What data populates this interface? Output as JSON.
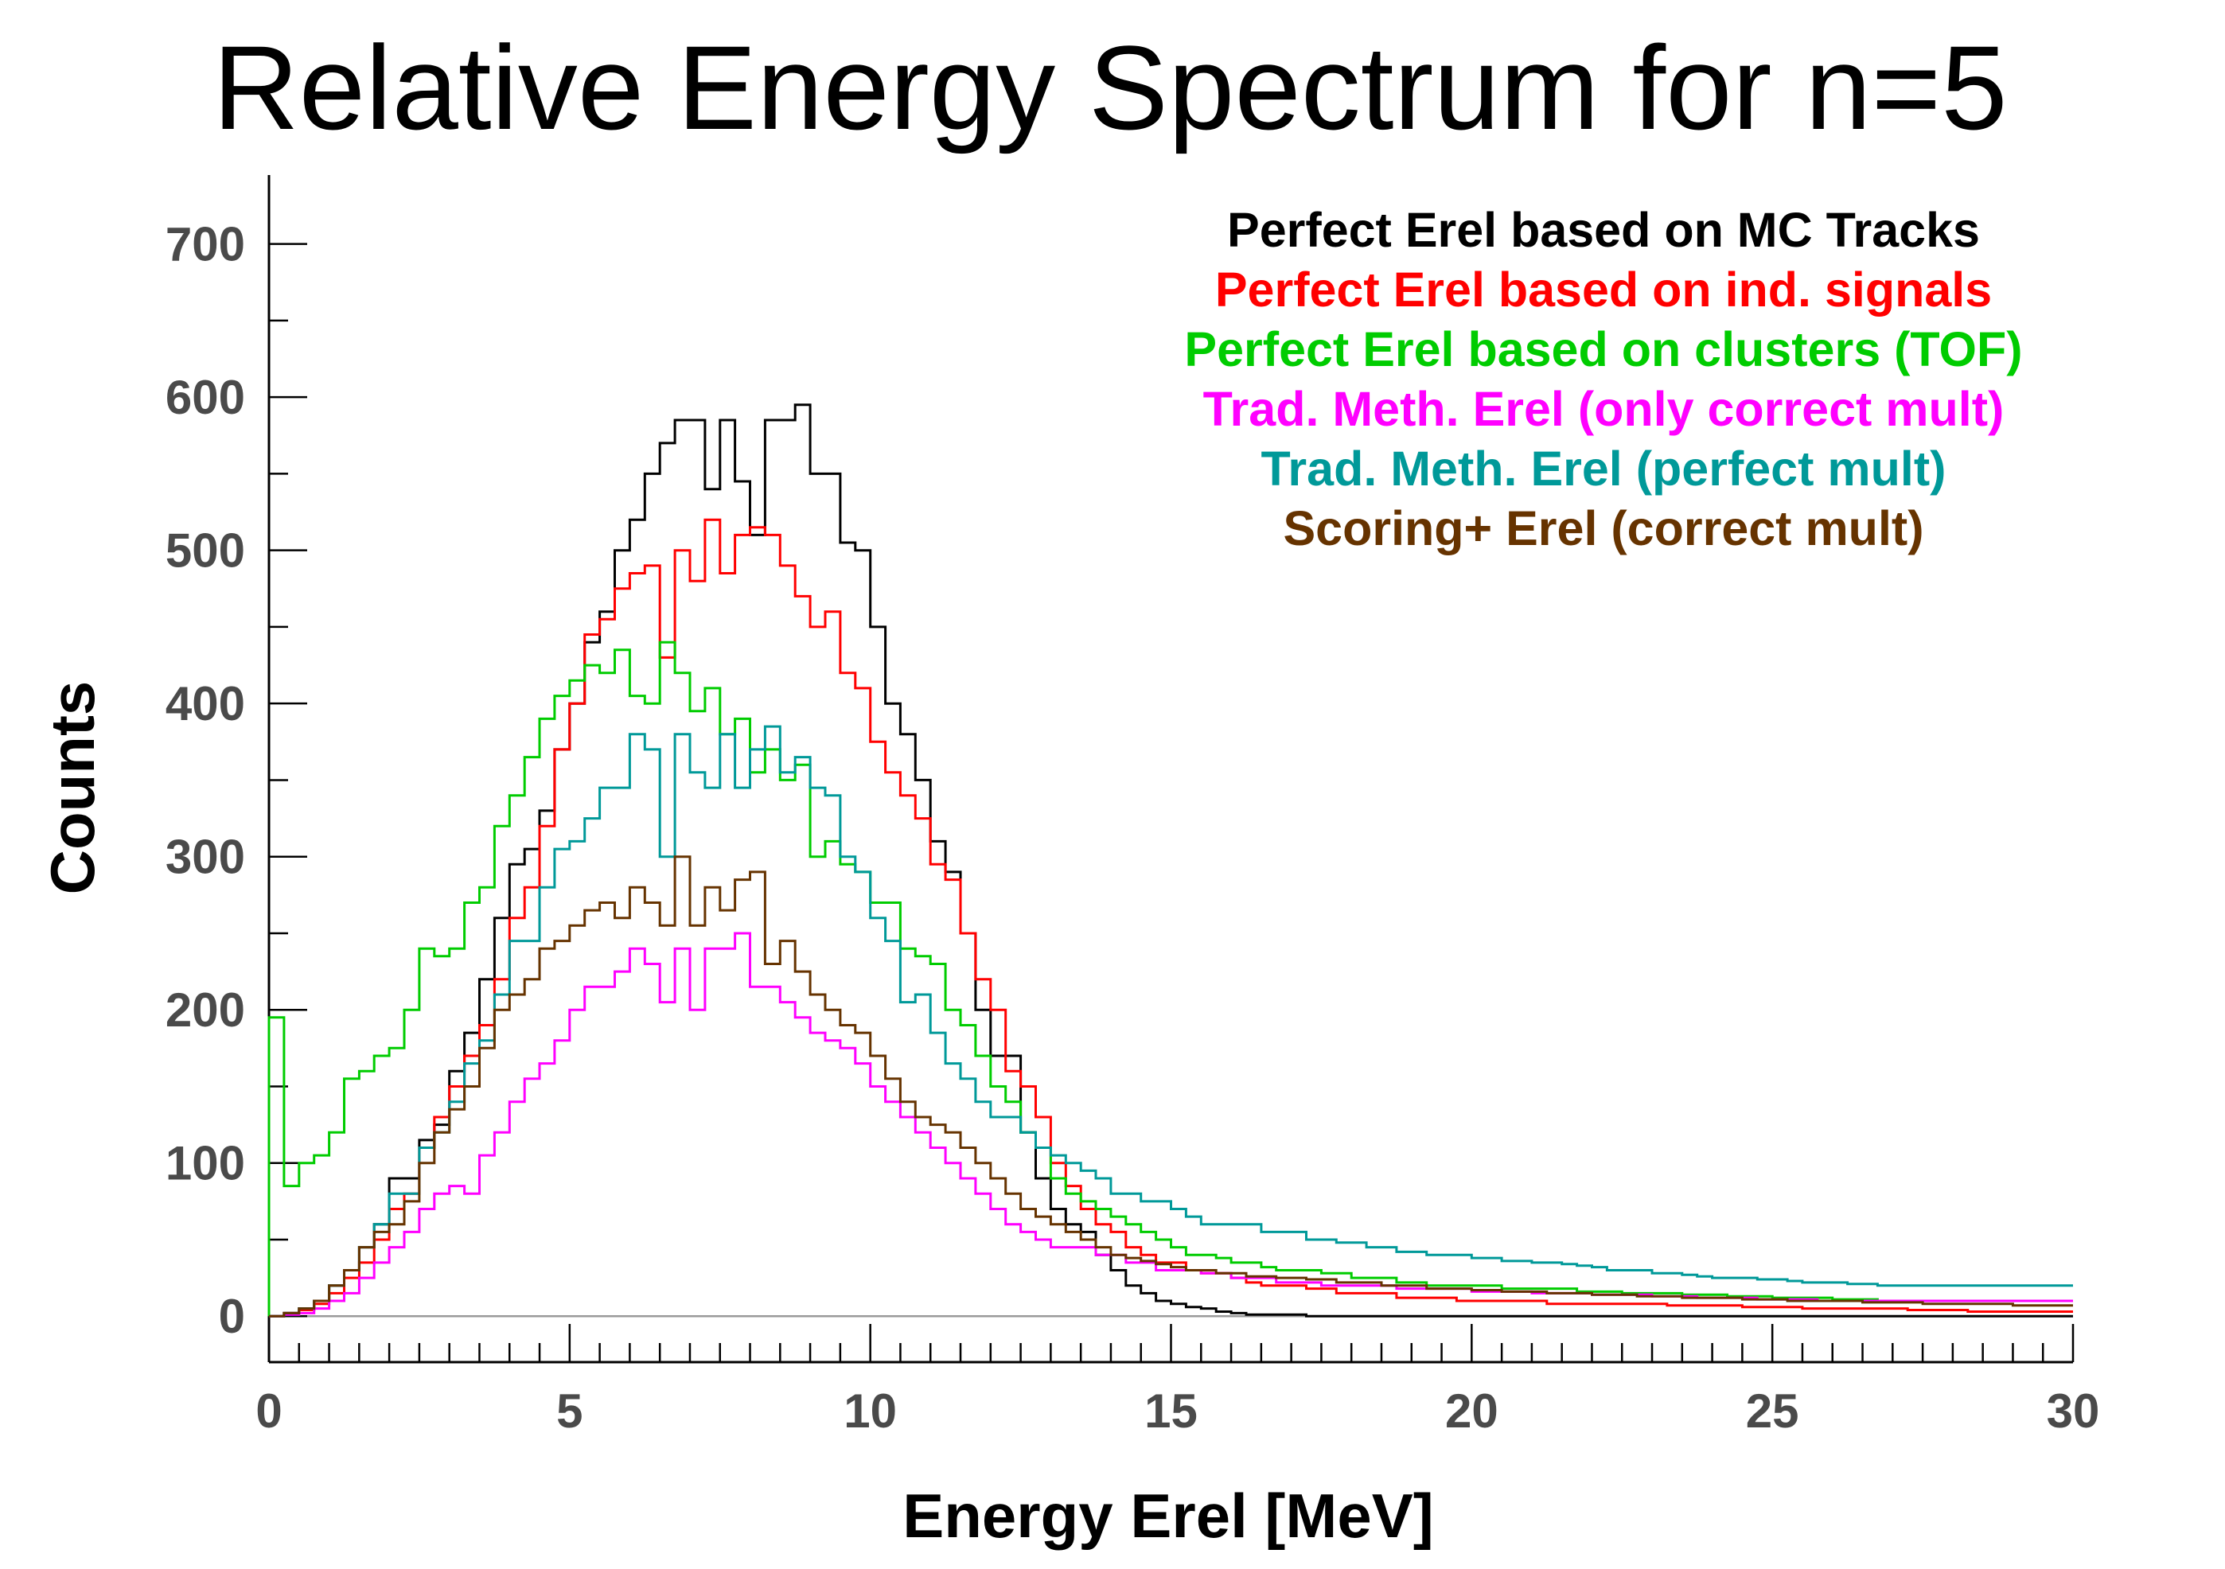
{
  "chart_data": {
    "type": "line",
    "title": "Relative Energy Spectrum for n=5",
    "xlabel": "Energy Erel [MeV]",
    "ylabel": "Counts",
    "xlim": [
      0,
      30
    ],
    "ylim": [
      -30,
      745
    ],
    "x_ticks": [
      0,
      5,
      10,
      15,
      20,
      25,
      30
    ],
    "x_tick_labels": [
      "0",
      "5",
      "10",
      "15",
      "20",
      "25",
      "30"
    ],
    "y_ticks": [
      0,
      100,
      200,
      300,
      400,
      500,
      600,
      700
    ],
    "y_tick_labels": [
      "0",
      "100",
      "200",
      "300",
      "400",
      "500",
      "600",
      "700"
    ],
    "bin_width": 0.25,
    "legend_position": "top-right",
    "grid": false,
    "series": [
      {
        "name": "Perfect Erel based on MC Tracks",
        "color": "#000000",
        "values": [
          0,
          2,
          5,
          10,
          20,
          30,
          45,
          60,
          90,
          90,
          115,
          125,
          160,
          185,
          220,
          260,
          295,
          305,
          330,
          370,
          400,
          440,
          460,
          500,
          520,
          550,
          570,
          585,
          585,
          540,
          585,
          545,
          510,
          585,
          585,
          595,
          550,
          550,
          505,
          500,
          450,
          400,
          380,
          350,
          310,
          290,
          250,
          200,
          170,
          170,
          120,
          90,
          70,
          60,
          55,
          40,
          30,
          20,
          15,
          10,
          8,
          6,
          5,
          3,
          2,
          1,
          1,
          1,
          1,
          0,
          0,
          0,
          0,
          0,
          0,
          0,
          0,
          0,
          0,
          0,
          0,
          0,
          0,
          0,
          0,
          0,
          0,
          0,
          0,
          0,
          0,
          0,
          0,
          0,
          0,
          0,
          0,
          0,
          0,
          0,
          0,
          0,
          0,
          0,
          0,
          0,
          0,
          0,
          0,
          0,
          0,
          0,
          0,
          0,
          0,
          0,
          0,
          0,
          0,
          0
        ]
      },
      {
        "name": "Perfect Erel based on ind. signals",
        "color": "#ff0000",
        "values": [
          0,
          2,
          4,
          8,
          15,
          25,
          35,
          50,
          70,
          80,
          110,
          130,
          150,
          170,
          190,
          220,
          260,
          280,
          320,
          370,
          400,
          445,
          455,
          475,
          485,
          490,
          430,
          500,
          480,
          520,
          485,
          510,
          515,
          510,
          490,
          470,
          450,
          460,
          420,
          410,
          375,
          355,
          340,
          325,
          295,
          285,
          250,
          220,
          200,
          160,
          150,
          130,
          100,
          85,
          70,
          60,
          55,
          45,
          40,
          35,
          35,
          30,
          28,
          28,
          25,
          22,
          20,
          20,
          20,
          18,
          18,
          15,
          15,
          15,
          15,
          12,
          12,
          12,
          12,
          10,
          10,
          10,
          10,
          10,
          10,
          8,
          8,
          8,
          8,
          8,
          8,
          8,
          8,
          7,
          7,
          7,
          7,
          7,
          6,
          6,
          6,
          6,
          5,
          5,
          5,
          5,
          5,
          5,
          5,
          4,
          4,
          4,
          4,
          3,
          3,
          3,
          3,
          3,
          3,
          3
        ]
      },
      {
        "name": "Perfect Erel based on clusters (TOF)",
        "color": "#00cc00",
        "values": [
          195,
          85,
          100,
          105,
          120,
          155,
          160,
          170,
          175,
          200,
          240,
          235,
          240,
          270,
          280,
          320,
          340,
          365,
          390,
          405,
          415,
          425,
          420,
          435,
          405,
          400,
          440,
          420,
          395,
          410,
          380,
          390,
          355,
          370,
          350,
          360,
          300,
          310,
          295,
          290,
          270,
          270,
          240,
          235,
          230,
          200,
          190,
          170,
          150,
          140,
          120,
          110,
          90,
          80,
          75,
          70,
          65,
          60,
          55,
          50,
          45,
          40,
          40,
          38,
          35,
          35,
          32,
          30,
          30,
          30,
          28,
          28,
          25,
          25,
          25,
          22,
          22,
          20,
          20,
          20,
          20,
          20,
          18,
          18,
          18,
          18,
          18,
          16,
          16,
          16,
          15,
          15,
          15,
          15,
          14,
          14,
          14,
          13,
          13,
          13,
          12,
          12,
          12,
          12,
          11,
          11,
          11,
          10,
          10,
          10,
          10,
          10,
          10,
          10,
          10,
          10,
          10,
          10,
          10,
          10
        ]
      },
      {
        "name": "Trad. Meth. Erel (only correct mult)",
        "color": "#ff00ff",
        "values": [
          0,
          1,
          2,
          5,
          10,
          15,
          25,
          35,
          45,
          55,
          70,
          80,
          85,
          80,
          105,
          120,
          140,
          155,
          165,
          180,
          200,
          215,
          215,
          225,
          240,
          230,
          205,
          240,
          200,
          240,
          240,
          250,
          215,
          215,
          205,
          195,
          185,
          180,
          175,
          165,
          150,
          140,
          130,
          120,
          110,
          100,
          90,
          80,
          70,
          60,
          55,
          50,
          45,
          45,
          45,
          40,
          40,
          35,
          35,
          30,
          30,
          30,
          28,
          28,
          25,
          25,
          25,
          22,
          22,
          22,
          20,
          20,
          20,
          20,
          20,
          18,
          18,
          18,
          18,
          18,
          16,
          16,
          16,
          16,
          15,
          15,
          15,
          15,
          14,
          14,
          14,
          14,
          13,
          13,
          13,
          12,
          12,
          12,
          12,
          11,
          11,
          11,
          11,
          10,
          10,
          10,
          10,
          10,
          10,
          10,
          10,
          10,
          10,
          10,
          10,
          10,
          10,
          10,
          10,
          10
        ]
      },
      {
        "name": "Trad. Meth. Erel (perfect mult)",
        "color": "#009999",
        "values": [
          0,
          2,
          5,
          10,
          20,
          30,
          45,
          60,
          80,
          80,
          110,
          120,
          140,
          165,
          180,
          210,
          245,
          245,
          280,
          305,
          310,
          325,
          345,
          345,
          380,
          370,
          300,
          380,
          355,
          345,
          380,
          345,
          370,
          385,
          355,
          365,
          345,
          340,
          300,
          290,
          260,
          245,
          205,
          210,
          185,
          165,
          155,
          140,
          130,
          130,
          120,
          110,
          105,
          100,
          95,
          90,
          80,
          80,
          75,
          75,
          70,
          65,
          60,
          60,
          60,
          60,
          55,
          55,
          55,
          50,
          50,
          48,
          48,
          45,
          45,
          42,
          42,
          40,
          40,
          40,
          38,
          38,
          36,
          36,
          35,
          35,
          34,
          33,
          32,
          30,
          30,
          30,
          28,
          28,
          27,
          26,
          25,
          25,
          25,
          24,
          24,
          23,
          22,
          22,
          22,
          21,
          21,
          20,
          20,
          20,
          20,
          20,
          20,
          20,
          20,
          20,
          20,
          20,
          20,
          20
        ]
      },
      {
        "name": "Scoring+ Erel (correct mult)",
        "color": "#663300",
        "values": [
          0,
          2,
          5,
          10,
          20,
          30,
          45,
          55,
          60,
          75,
          100,
          120,
          135,
          150,
          175,
          200,
          210,
          220,
          240,
          245,
          255,
          265,
          270,
          260,
          280,
          270,
          255,
          300,
          255,
          280,
          265,
          285,
          290,
          230,
          245,
          225,
          210,
          200,
          190,
          185,
          170,
          155,
          140,
          130,
          125,
          120,
          110,
          100,
          90,
          80,
          70,
          65,
          60,
          55,
          50,
          45,
          40,
          38,
          36,
          34,
          32,
          30,
          30,
          28,
          28,
          26,
          26,
          25,
          25,
          24,
          24,
          22,
          22,
          22,
          20,
          20,
          20,
          18,
          18,
          18,
          17,
          17,
          16,
          16,
          16,
          15,
          15,
          15,
          14,
          14,
          14,
          13,
          13,
          13,
          12,
          12,
          12,
          12,
          11,
          11,
          11,
          10,
          10,
          10,
          10,
          10,
          9,
          9,
          9,
          9,
          8,
          8,
          8,
          8,
          8,
          8,
          7,
          7,
          7,
          7
        ]
      }
    ]
  }
}
